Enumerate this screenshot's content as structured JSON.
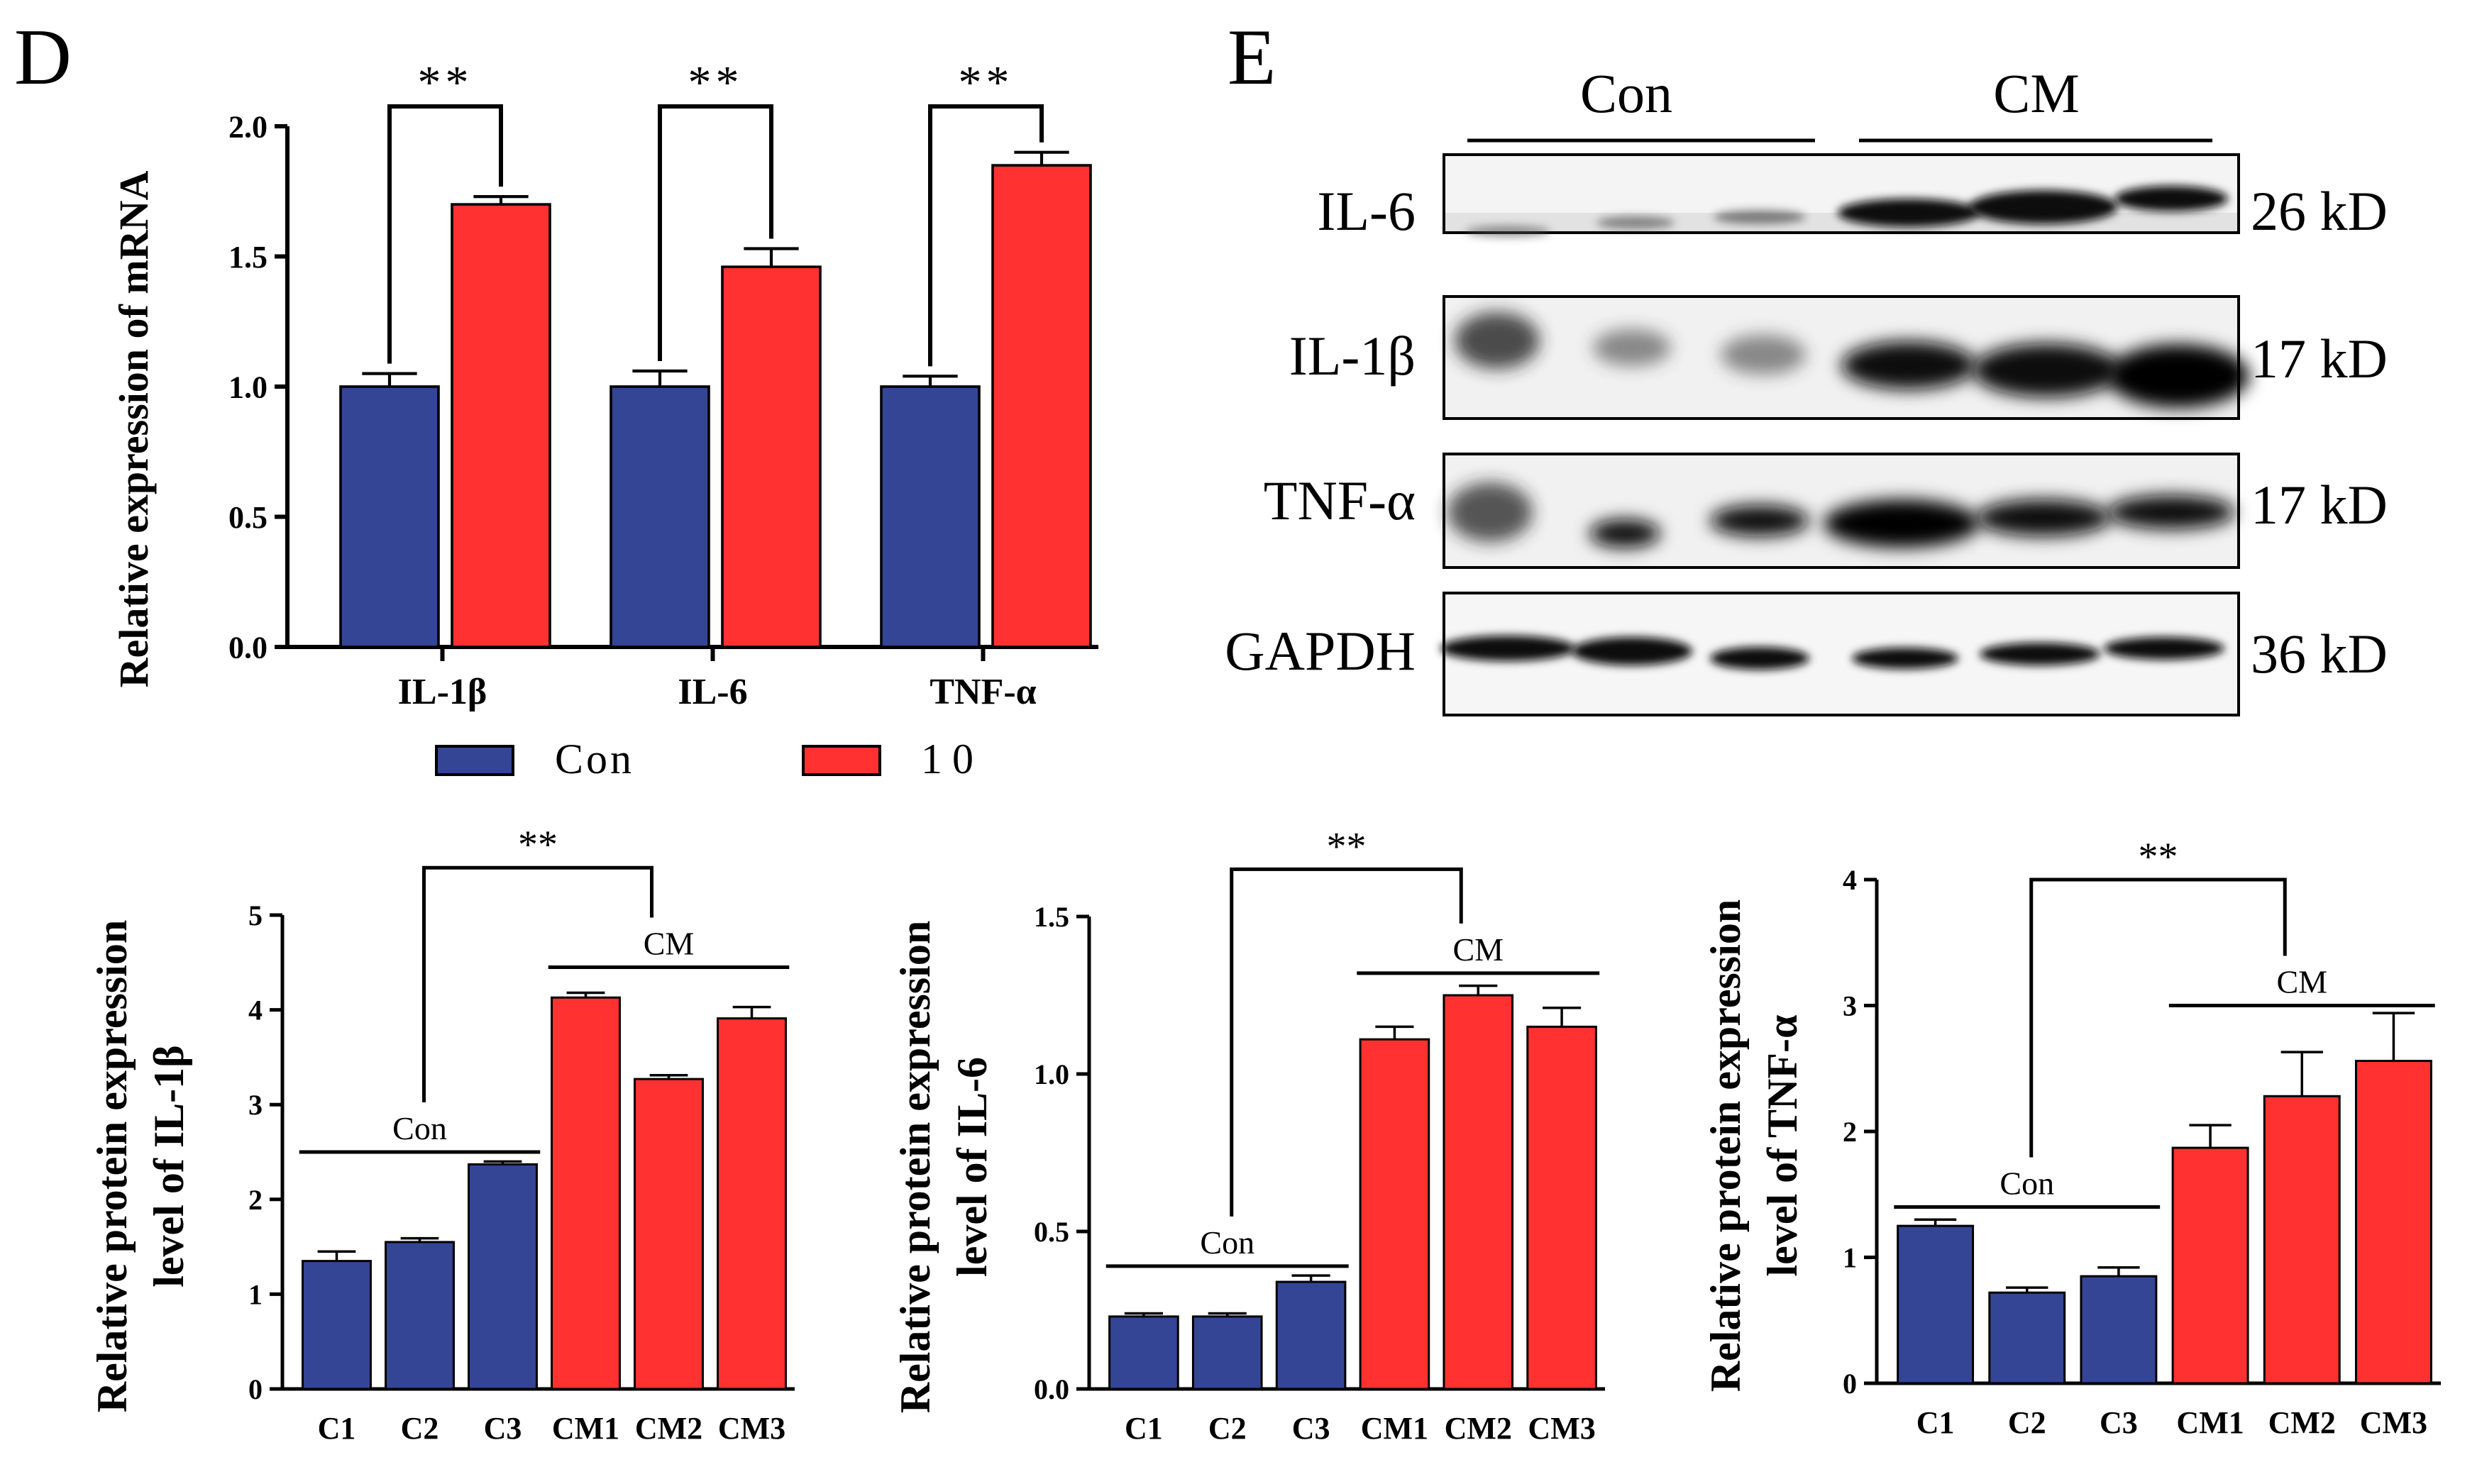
{
  "panel_labels": {
    "d": "D",
    "e": "E"
  },
  "colors": {
    "con": "#344596",
    "treat": "#FF3131",
    "axis": "#000000",
    "blot_bg": "#f2f2f2"
  },
  "chart_data": [
    {
      "id": "mrna",
      "type": "bar",
      "title": "",
      "xlabel": "",
      "ylabel": "Relative expression of mRNA",
      "ylim": [
        0,
        2.0
      ],
      "yticks": [
        "0.0",
        "0.5",
        "1.0",
        "1.5",
        "2.0"
      ],
      "categories": [
        "IL-1β",
        "IL-6",
        "TNF-α"
      ],
      "series": [
        {
          "name": "Con",
          "values": [
            1.0,
            1.0,
            1.0
          ],
          "errors": [
            0.05,
            0.06,
            0.04
          ]
        },
        {
          "name": "10",
          "values": [
            1.7,
            1.46,
            1.85
          ],
          "errors": [
            0.03,
            0.07,
            0.05
          ]
        }
      ],
      "significance": [
        "**",
        "**",
        "**"
      ],
      "legend": [
        "Con",
        "10"
      ]
    },
    {
      "id": "il1b",
      "type": "bar",
      "title": "",
      "ylabel_line1": "Relative protein expression",
      "ylabel_line2": "level of IL-1β",
      "ylim": [
        0,
        5
      ],
      "yticks": [
        "0",
        "1",
        "2",
        "3",
        "4",
        "5"
      ],
      "categories": [
        "C1",
        "C2",
        "C3",
        "CM1",
        "CM2",
        "CM3"
      ],
      "values": [
        1.35,
        1.55,
        2.37,
        4.13,
        3.27,
        3.91
      ],
      "errors": [
        0.1,
        0.04,
        0.03,
        0.05,
        0.04,
        0.12
      ],
      "groups": [
        {
          "label": "Con",
          "level": 2.5
        },
        {
          "label": "CM",
          "level": 4.45
        }
      ],
      "significance": "**",
      "sig_level": 5.5
    },
    {
      "id": "il6",
      "type": "bar",
      "title": "",
      "ylabel_line1": "Relative protein expression",
      "ylabel_line2": "level of IL-6",
      "ylim": [
        0,
        1.5
      ],
      "yticks": [
        "0.0",
        "0.5",
        "1.0",
        "1.5"
      ],
      "categories": [
        "C1",
        "C2",
        "C3",
        "CM1",
        "CM2",
        "CM3"
      ],
      "values": [
        0.23,
        0.23,
        0.34,
        1.11,
        1.25,
        1.15
      ],
      "errors": [
        0.01,
        0.01,
        0.02,
        0.04,
        0.03,
        0.06
      ],
      "groups": [
        {
          "label": "Con",
          "level": 0.39
        },
        {
          "label": "CM",
          "level": 1.32
        }
      ],
      "significance": "**",
      "sig_level": 1.65
    },
    {
      "id": "tnfa",
      "type": "bar",
      "title": "",
      "ylabel_line1": "Relative protein expression",
      "ylabel_line2": "level of TNF-α",
      "ylim": [
        0,
        4
      ],
      "yticks": [
        "0",
        "1",
        "2",
        "3",
        "4"
      ],
      "categories": [
        "C1",
        "C2",
        "C3",
        "CM1",
        "CM2",
        "CM3"
      ],
      "values": [
        1.25,
        0.72,
        0.85,
        1.87,
        2.28,
        2.56
      ],
      "errors": [
        0.05,
        0.04,
        0.07,
        0.18,
        0.35,
        0.38
      ],
      "groups": [
        {
          "label": "Con",
          "level": 1.4
        },
        {
          "label": "CM",
          "level": 3.0
        }
      ],
      "significance": "**",
      "sig_level": 4.0
    }
  ],
  "blot": {
    "group_labels": [
      "Con",
      "CM"
    ],
    "rows": [
      {
        "protein": "IL-6",
        "size": "26 kD"
      },
      {
        "protein": "IL-1β",
        "size": "17 kD"
      },
      {
        "protein": "TNF-α",
        "size": "17 kD"
      },
      {
        "protein": "GAPDH",
        "size": "36 kD"
      }
    ]
  }
}
